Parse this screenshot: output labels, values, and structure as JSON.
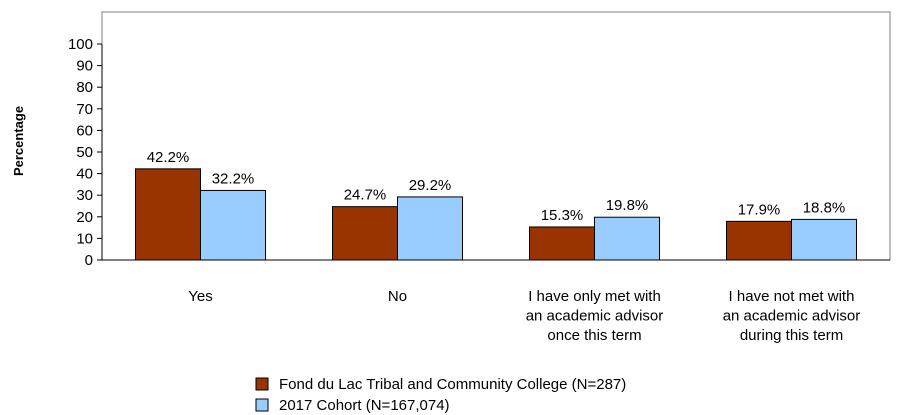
{
  "chart_data": {
    "type": "bar",
    "title": "",
    "xlabel": "",
    "ylabel": "Percentage",
    "ylim": [
      0,
      100
    ],
    "yticks": [
      0,
      10,
      20,
      30,
      40,
      50,
      60,
      70,
      80,
      90,
      100
    ],
    "grid": false,
    "legend_position": "bottom",
    "categories": [
      [
        "Yes"
      ],
      [
        "No"
      ],
      [
        "I have only met with",
        "an academic advisor",
        "once this term"
      ],
      [
        "I have not met with",
        "an academic advisor",
        "during this term"
      ]
    ],
    "series": [
      {
        "name": "Fond du Lac Tribal and Community College (N=287)",
        "color": "#993300",
        "values": [
          42.2,
          24.7,
          15.3,
          17.9
        ],
        "labels": [
          "42.2%",
          "24.7%",
          "15.3%",
          "17.9%"
        ]
      },
      {
        "name": "2017 Cohort (N=167,074)",
        "color": "#99ccff",
        "values": [
          32.2,
          29.2,
          19.8,
          18.8
        ],
        "labels": [
          "32.2%",
          "29.2%",
          "19.8%",
          "18.8%"
        ]
      }
    ]
  }
}
